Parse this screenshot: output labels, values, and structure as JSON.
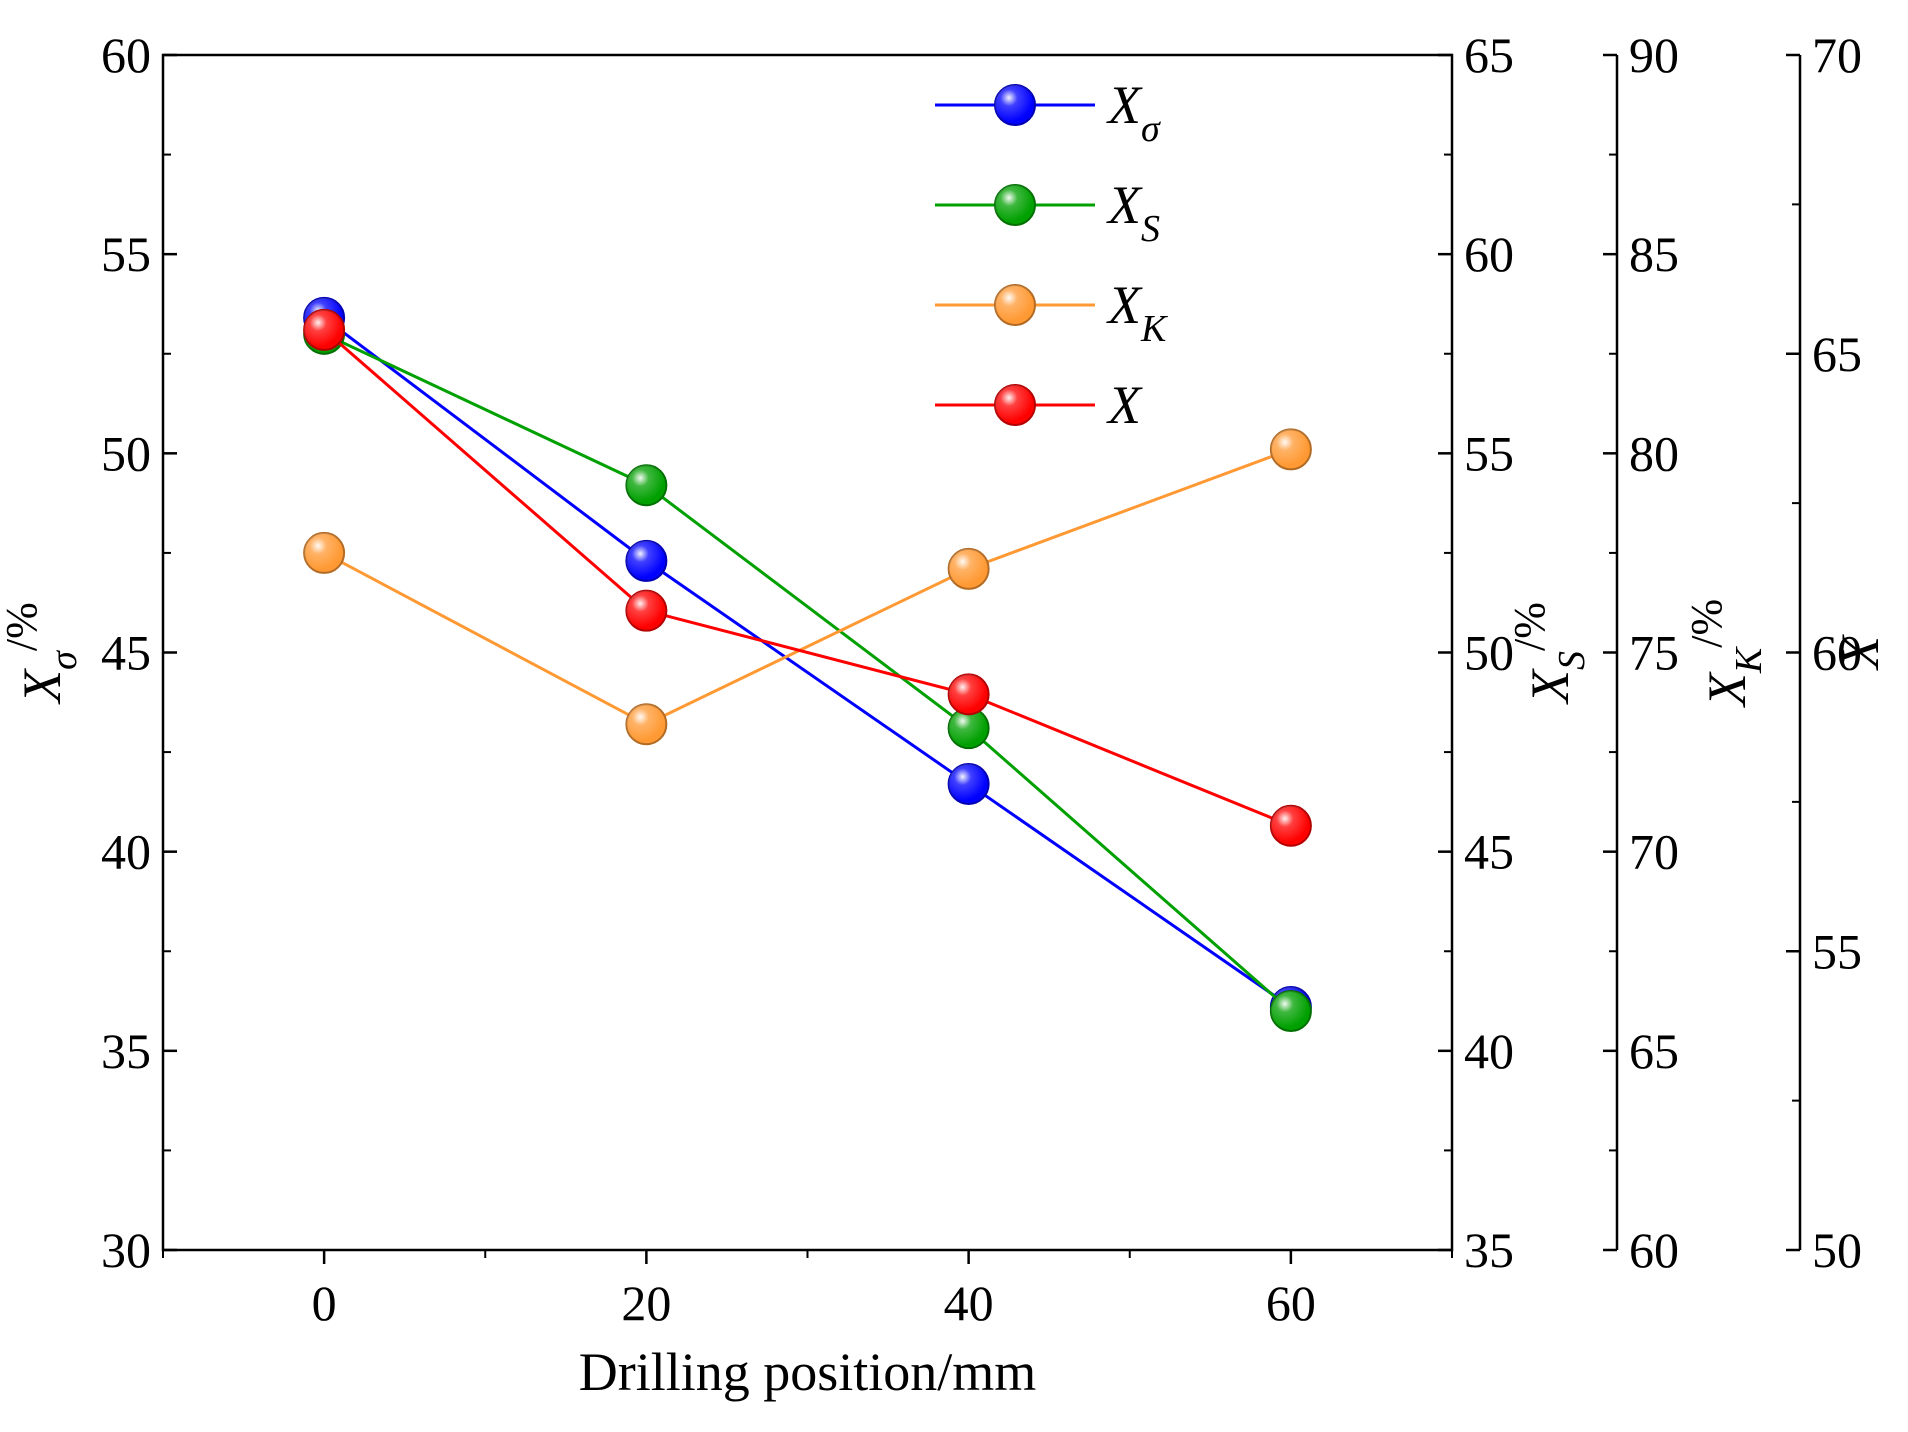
{
  "chart_data": {
    "type": "line",
    "x": [
      0,
      20,
      40,
      60
    ],
    "xlabel": "Drilling position/mm",
    "xlim": [
      -10,
      70
    ],
    "x_ticks": [
      "0",
      "20",
      "40",
      "60"
    ],
    "grid": false,
    "legend_position": "top-center",
    "axes": [
      {
        "id": "sigma",
        "label_main": "X",
        "label_sub": "σ",
        "label_unit": "/%",
        "range": [
          30,
          60
        ],
        "ticks": [
          "30",
          "35",
          "40",
          "45",
          "50",
          "55",
          "60"
        ]
      },
      {
        "id": "s",
        "label_main": "X",
        "label_sub": "S",
        "label_unit": "/%",
        "range": [
          35,
          65
        ],
        "ticks": [
          "35",
          "40",
          "45",
          "50",
          "55",
          "60",
          "65"
        ]
      },
      {
        "id": "k",
        "label_main": "X",
        "label_sub": "K",
        "label_unit": "/%",
        "range": [
          60,
          90
        ],
        "ticks": [
          "60",
          "65",
          "70",
          "75",
          "80",
          "85",
          "90"
        ]
      },
      {
        "id": "x",
        "label_main": "X",
        "label_sub": "",
        "label_unit": "",
        "range": [
          50,
          70
        ],
        "ticks": [
          "50",
          "55",
          "60",
          "65",
          "70"
        ]
      }
    ],
    "series": [
      {
        "name_main": "X",
        "name_sub": "σ",
        "axis": "sigma",
        "color": "#0000ff",
        "values": [
          53.4,
          47.3,
          41.7,
          36.1
        ]
      },
      {
        "name_main": "X",
        "name_sub": "S",
        "axis": "s",
        "color": "#00a000",
        "values": [
          58.0,
          54.2,
          48.1,
          41.0
        ]
      },
      {
        "name_main": "X",
        "name_sub": "K",
        "axis": "k",
        "color": "#ff9933",
        "values": [
          77.5,
          73.2,
          77.1,
          80.1
        ]
      },
      {
        "name_main": "X",
        "name_sub": "",
        "axis": "x",
        "color": "#ff0000",
        "values": [
          65.4,
          60.7,
          59.3,
          57.1
        ]
      }
    ]
  }
}
